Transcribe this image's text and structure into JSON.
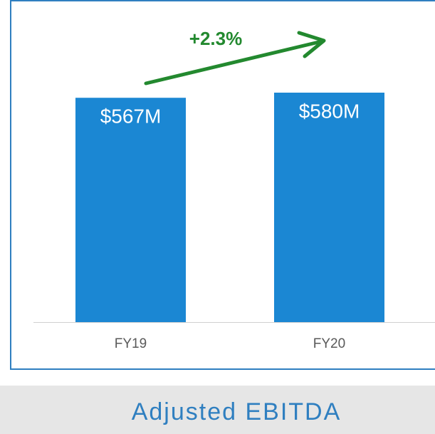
{
  "chart_data": {
    "type": "bar",
    "title": "Adjusted EBITDA",
    "annotation": "+2.3%",
    "categories": [
      "FY19",
      "FY20"
    ],
    "values": [
      567,
      580
    ],
    "value_labels": [
      "$567M",
      "$580M"
    ],
    "color": "#1b87d3",
    "annotation_color": "#23892f"
  }
}
